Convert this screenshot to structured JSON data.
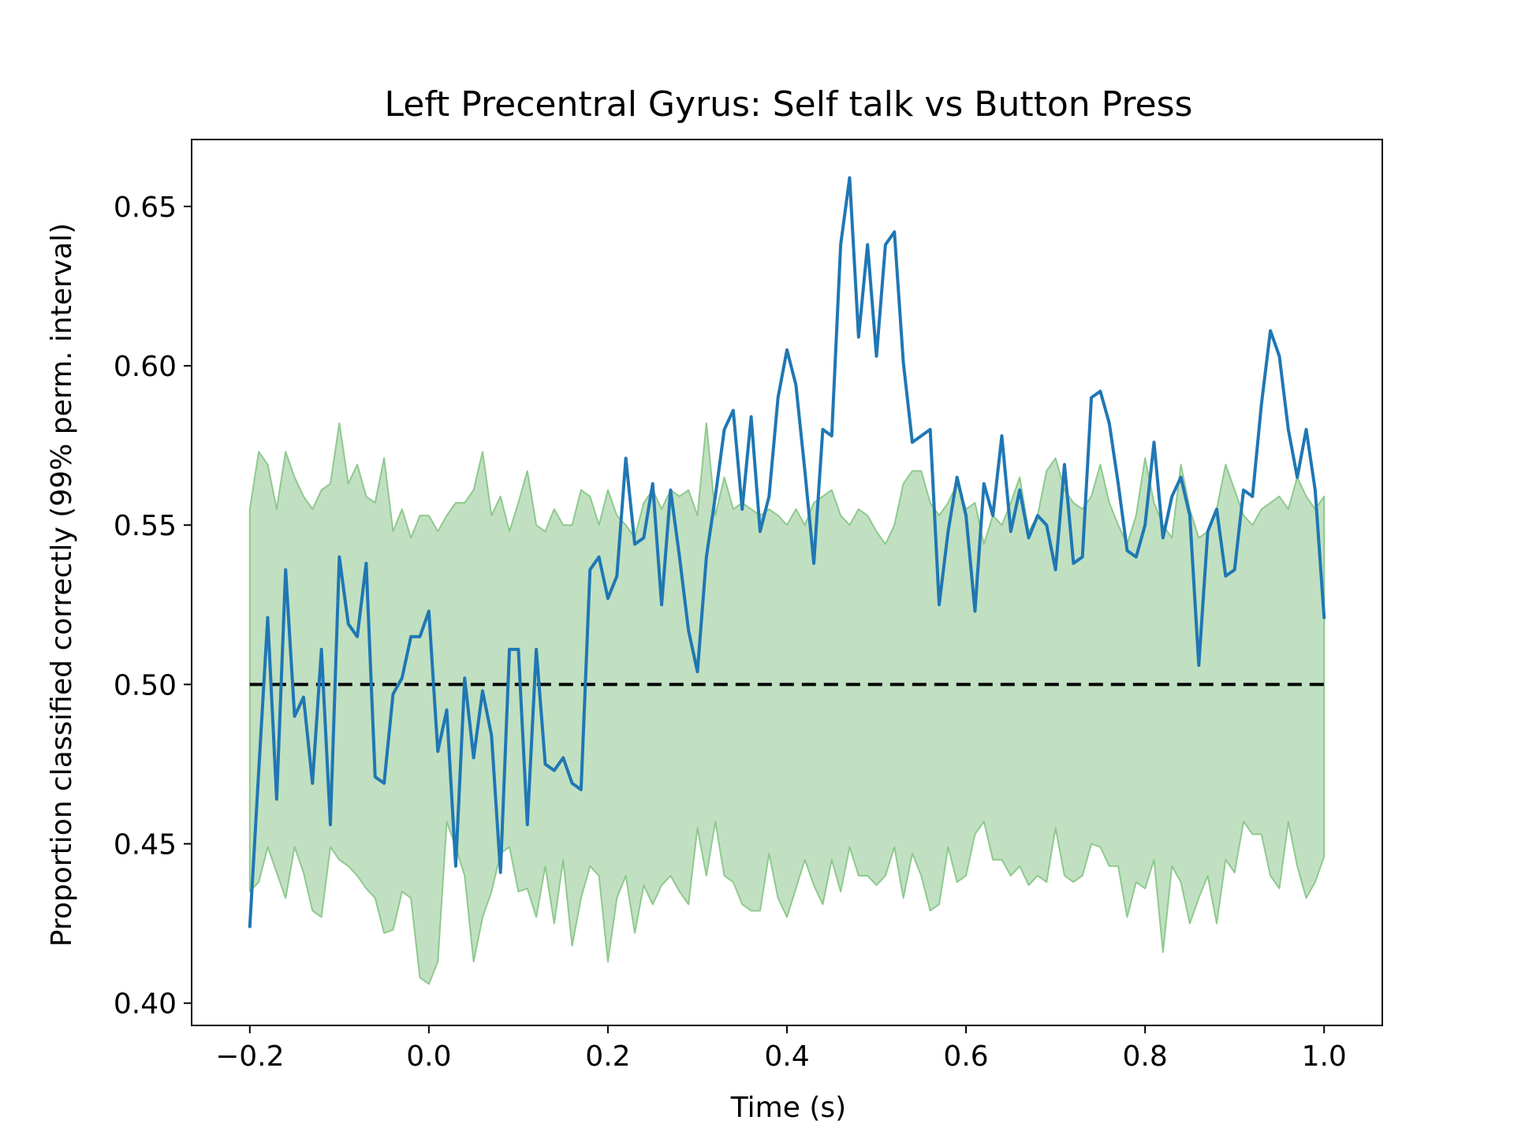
{
  "chart_data": {
    "type": "line",
    "title": "Left Precentral Gyrus: Self talk vs Button Press",
    "xlabel": "Time (s)",
    "ylabel": "Proportion classified correctly (99% perm. interval)",
    "xlim": [
      -0.265,
      1.065
    ],
    "ylim": [
      0.393,
      0.671
    ],
    "xticks": [
      -0.2,
      0.0,
      0.2,
      0.4,
      0.6,
      0.8,
      1.0
    ],
    "xtick_labels": [
      "−0.2",
      "0.0",
      "0.2",
      "0.4",
      "0.6",
      "0.8",
      "1.0"
    ],
    "yticks": [
      0.4,
      0.45,
      0.5,
      0.55,
      0.6,
      0.65
    ],
    "ytick_labels": [
      "0.40",
      "0.45",
      "0.50",
      "0.55",
      "0.60",
      "0.65"
    ],
    "grid": false,
    "legend": "none",
    "x_start": -0.2,
    "x_step": 0.01,
    "accuracy": [
      0.424,
      0.473,
      0.521,
      0.464,
      0.536,
      0.49,
      0.496,
      0.469,
      0.511,
      0.456,
      0.54,
      0.519,
      0.515,
      0.538,
      0.471,
      0.469,
      0.497,
      0.502,
      0.515,
      0.515,
      0.523,
      0.479,
      0.492,
      0.443,
      0.502,
      0.477,
      0.498,
      0.484,
      0.441,
      0.511,
      0.511,
      0.456,
      0.511,
      0.475,
      0.473,
      0.477,
      0.469,
      0.467,
      0.536,
      0.54,
      0.527,
      0.534,
      0.571,
      0.544,
      0.546,
      0.563,
      0.525,
      0.561,
      0.54,
      0.517,
      0.504,
      0.54,
      0.559,
      0.58,
      0.586,
      0.555,
      0.584,
      0.548,
      0.559,
      0.59,
      0.605,
      0.594,
      0.567,
      0.538,
      0.58,
      0.578,
      0.638,
      0.659,
      0.609,
      0.638,
      0.603,
      0.638,
      0.642,
      0.601,
      0.576,
      0.578,
      0.58,
      0.525,
      0.548,
      0.565,
      0.553,
      0.523,
      0.563,
      0.553,
      0.578,
      0.548,
      0.561,
      0.546,
      0.553,
      0.55,
      0.536,
      0.569,
      0.538,
      0.54,
      0.59,
      0.592,
      0.582,
      0.563,
      0.542,
      0.54,
      0.55,
      0.576,
      0.546,
      0.559,
      0.565,
      0.553,
      0.506,
      0.548,
      0.555,
      0.534,
      0.536,
      0.561,
      0.559,
      0.588,
      0.611,
      0.603,
      0.58,
      0.565,
      0.58,
      0.561,
      0.521
    ],
    "perm_upper": [
      0.555,
      0.573,
      0.569,
      0.555,
      0.573,
      0.565,
      0.559,
      0.555,
      0.561,
      0.563,
      0.582,
      0.563,
      0.569,
      0.559,
      0.557,
      0.571,
      0.548,
      0.555,
      0.546,
      0.553,
      0.553,
      0.548,
      0.553,
      0.557,
      0.557,
      0.561,
      0.573,
      0.553,
      0.559,
      0.548,
      0.557,
      0.567,
      0.55,
      0.548,
      0.555,
      0.55,
      0.55,
      0.561,
      0.559,
      0.55,
      0.561,
      0.553,
      0.55,
      0.546,
      0.557,
      0.561,
      0.555,
      0.561,
      0.559,
      0.561,
      0.553,
      0.582,
      0.553,
      0.565,
      0.555,
      0.557,
      0.555,
      0.553,
      0.555,
      0.553,
      0.55,
      0.555,
      0.55,
      0.557,
      0.559,
      0.561,
      0.553,
      0.55,
      0.555,
      0.553,
      0.548,
      0.544,
      0.55,
      0.563,
      0.567,
      0.567,
      0.557,
      0.553,
      0.557,
      0.563,
      0.555,
      0.557,
      0.544,
      0.553,
      0.55,
      0.557,
      0.565,
      0.548,
      0.553,
      0.567,
      0.571,
      0.561,
      0.557,
      0.555,
      0.559,
      0.569,
      0.557,
      0.55,
      0.544,
      0.553,
      0.571,
      0.557,
      0.55,
      0.546,
      0.569,
      0.555,
      0.546,
      0.548,
      0.555,
      0.569,
      0.561,
      0.553,
      0.55,
      0.555,
      0.557,
      0.559,
      0.555,
      0.565,
      0.559,
      0.555,
      0.559
    ],
    "perm_lower": [
      0.435,
      0.438,
      0.449,
      0.441,
      0.433,
      0.449,
      0.441,
      0.429,
      0.427,
      0.449,
      0.445,
      0.443,
      0.44,
      0.436,
      0.433,
      0.422,
      0.423,
      0.435,
      0.433,
      0.408,
      0.406,
      0.413,
      0.457,
      0.449,
      0.44,
      0.413,
      0.427,
      0.435,
      0.447,
      0.449,
      0.435,
      0.436,
      0.427,
      0.443,
      0.425,
      0.445,
      0.418,
      0.433,
      0.443,
      0.44,
      0.413,
      0.433,
      0.44,
      0.422,
      0.437,
      0.431,
      0.437,
      0.44,
      0.435,
      0.431,
      0.455,
      0.44,
      0.457,
      0.44,
      0.438,
      0.431,
      0.429,
      0.429,
      0.447,
      0.433,
      0.427,
      0.436,
      0.445,
      0.437,
      0.431,
      0.445,
      0.435,
      0.449,
      0.44,
      0.44,
      0.437,
      0.44,
      0.449,
      0.433,
      0.447,
      0.44,
      0.429,
      0.431,
      0.449,
      0.438,
      0.44,
      0.453,
      0.457,
      0.445,
      0.445,
      0.44,
      0.443,
      0.437,
      0.44,
      0.438,
      0.455,
      0.44,
      0.438,
      0.44,
      0.45,
      0.449,
      0.443,
      0.443,
      0.427,
      0.438,
      0.436,
      0.445,
      0.416,
      0.443,
      0.438,
      0.425,
      0.433,
      0.44,
      0.425,
      0.445,
      0.441,
      0.457,
      0.453,
      0.453,
      0.44,
      0.436,
      0.457,
      0.443,
      0.433,
      0.438,
      0.446
    ],
    "chance_level": 0.5,
    "colors": {
      "accuracy_line": "#1f77b4",
      "perm_fill": "#c1e0c1",
      "perm_edge": "#8ec98e",
      "chance_line": "#000000"
    }
  }
}
